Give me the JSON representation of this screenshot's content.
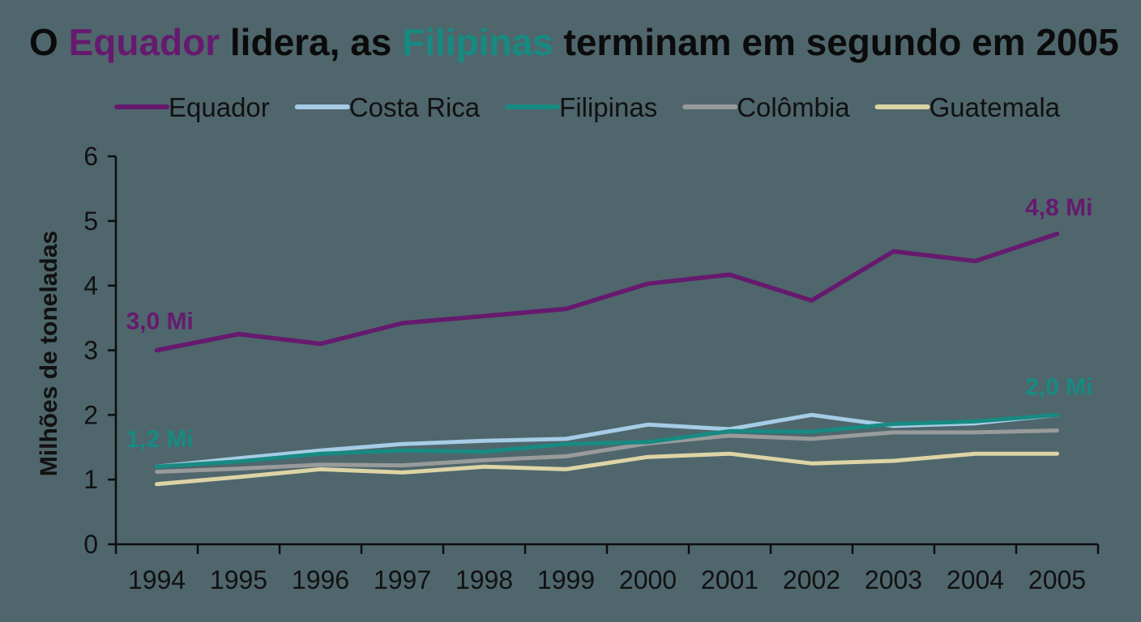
{
  "title": {
    "prefix": "O ",
    "highlight1": "Equador",
    "middle": " lidera, as ",
    "highlight2": "Filipinas",
    "suffix": " terminam em segundo em 2005"
  },
  "colors": {
    "Equador": "#661a6e",
    "Costa Rica": "#a6cce6",
    "Filipinas": "#178a82",
    "Colômbia": "#999b9b",
    "Guatemala": "#ddd4a6",
    "background": "#4f666c"
  },
  "chart_data": {
    "type": "line",
    "title": "O Equador lidera, as Filipinas terminam em segundo em 2005",
    "xlabel": "",
    "ylabel": "Milhões de toneladas",
    "ylim": [
      0,
      6
    ],
    "yticks": [
      "0",
      "1",
      "2",
      "3",
      "4",
      "5",
      "6"
    ],
    "x": [
      "1994",
      "1995",
      "1996",
      "1997",
      "1998",
      "1999",
      "2000",
      "2001",
      "2002",
      "2003",
      "2004",
      "2005"
    ],
    "legend_position": "top",
    "grid": false,
    "series": [
      {
        "name": "Equador",
        "values": [
          3.0,
          3.25,
          3.1,
          3.42,
          3.53,
          3.64,
          4.03,
          4.17,
          3.77,
          4.53,
          4.38,
          4.8
        ]
      },
      {
        "name": "Costa Rica",
        "values": [
          1.2,
          1.33,
          1.45,
          1.55,
          1.6,
          1.63,
          1.85,
          1.78,
          2.0,
          1.83,
          1.87,
          2.0
        ]
      },
      {
        "name": "Filipinas",
        "values": [
          1.2,
          1.28,
          1.4,
          1.45,
          1.43,
          1.55,
          1.58,
          1.75,
          1.74,
          1.86,
          1.9,
          2.0
        ]
      },
      {
        "name": "Colômbia",
        "values": [
          1.12,
          1.17,
          1.23,
          1.22,
          1.3,
          1.36,
          1.56,
          1.68,
          1.63,
          1.73,
          1.73,
          1.76
        ]
      },
      {
        "name": "Guatemala",
        "values": [
          0.93,
          1.04,
          1.16,
          1.11,
          1.2,
          1.16,
          1.35,
          1.4,
          1.25,
          1.29,
          1.4,
          1.4
        ]
      }
    ],
    "annotations": [
      {
        "text": "3,0 Mi",
        "series": "Equador",
        "x": "1994",
        "y": 3.0
      },
      {
        "text": "4,8 Mi",
        "series": "Equador",
        "x": "2005",
        "y": 4.8
      },
      {
        "text": "1,2 Mi",
        "series": "Filipinas",
        "x": "1994",
        "y": 1.2
      },
      {
        "text": "2,0 Mi",
        "series": "Filipinas",
        "x": "2005",
        "y": 2.0
      }
    ]
  }
}
